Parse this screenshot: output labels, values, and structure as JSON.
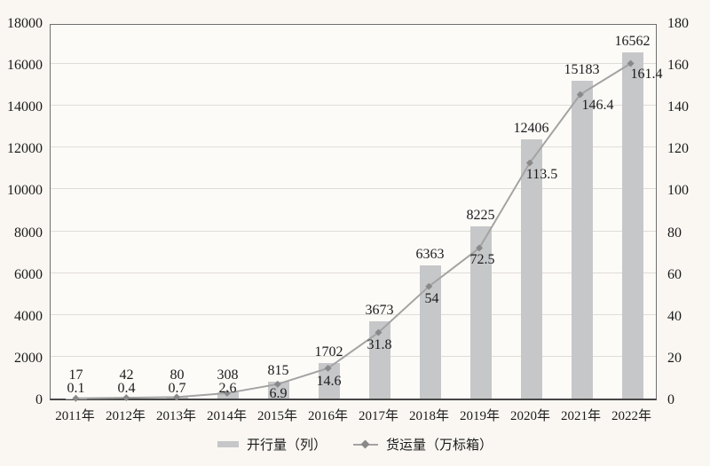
{
  "chart_data": {
    "type": "bar+line",
    "title": "",
    "categories": [
      "2011年",
      "2012年",
      "2013年",
      "2014年",
      "2015年",
      "2016年",
      "2017年",
      "2018年",
      "2019年",
      "2020年",
      "2021年",
      "2022年"
    ],
    "series": [
      {
        "name": "开行量（列）",
        "type": "bar",
        "axis": "left",
        "color": "#c6c7c9",
        "values": [
          17,
          42,
          80,
          308,
          815,
          1702,
          3673,
          6363,
          8225,
          12406,
          15183,
          16562
        ],
        "labels": [
          "17",
          "42",
          "80",
          "308",
          "815",
          "1702",
          "3673",
          "6363",
          "8225",
          "12406",
          "15183",
          "16562"
        ]
      },
      {
        "name": "货运量（万标箱）",
        "type": "line",
        "axis": "right",
        "color": "#a3a3a3",
        "marker": "diamond",
        "marker_color": "#898989",
        "values": [
          0.1,
          0.4,
          0.7,
          2.6,
          6.9,
          14.6,
          31.8,
          54,
          72.5,
          113.5,
          146.4,
          161.4
        ],
        "labels": [
          "0.1",
          "0.4",
          "0.7",
          "2.6",
          "6.9",
          "14.6",
          "31.8",
          "54",
          "72.5",
          "113.5",
          "146.4",
          "161.4"
        ]
      }
    ],
    "left_axis": {
      "min": 0,
      "max": 18000,
      "step": 2000,
      "ticks": [
        "0",
        "2000",
        "4000",
        "6000",
        "8000",
        "10000",
        "12000",
        "14000",
        "16000",
        "18000"
      ]
    },
    "right_axis": {
      "min": 0,
      "max": 180,
      "step": 20,
      "ticks": [
        "0",
        "20",
        "40",
        "60",
        "80",
        "100",
        "120",
        "140",
        "160",
        "180"
      ]
    },
    "grid": true,
    "data_labels": true,
    "legend_position": "bottom"
  },
  "legend": {
    "bar_label": "开行量（列）",
    "line_label": "货运量（万标箱）"
  },
  "colors": {
    "background": "#faf7f2",
    "plot_background": "#fdfbf8",
    "bar": "#c6c7c9",
    "line": "#a3a3a3",
    "marker": "#898989",
    "gridline": "#e0ddd8",
    "plot_border": "#6e6e6e",
    "axis_line": "#474747",
    "text": "#1b1b1b"
  }
}
